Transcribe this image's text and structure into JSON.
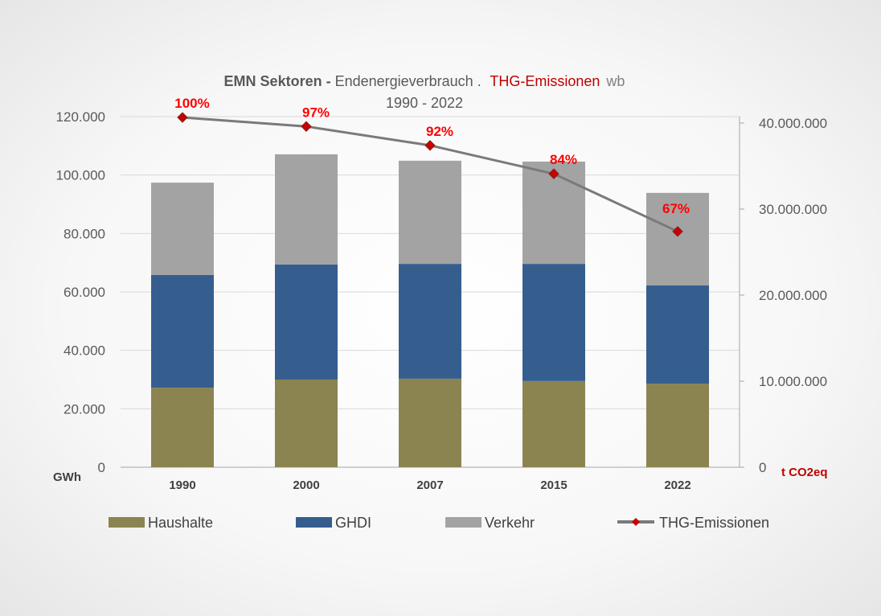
{
  "chart_data": {
    "type": "bar",
    "title": {
      "part1": "EMN Sektoren",
      "sep": " - ",
      "part2": "Endenergieverbrauch",
      "dot": " . ",
      "part3": "THG-Emissionen",
      "part4": "wb"
    },
    "subtitle": "1990 - 2022",
    "ylabel": "GWh",
    "y2label": "t CO2eq",
    "ylim": [
      0,
      120000
    ],
    "y2lim": [
      0,
      40000000
    ],
    "yticks": [
      "0",
      "20.000",
      "40.000",
      "60.000",
      "80.000",
      "100.000",
      "120.000"
    ],
    "y2ticks": [
      "0",
      "10.000.000",
      "20.000.000",
      "30.000.000",
      "40.000.000"
    ],
    "categories": [
      "1990",
      "2000",
      "2007",
      "2015",
      "2022"
    ],
    "series": [
      {
        "name": "Haushalte",
        "type": "stacked-bar",
        "color": "#8b8450",
        "values": [
          27200,
          30000,
          30300,
          29500,
          28600
        ]
      },
      {
        "name": "GHDI",
        "type": "stacked-bar",
        "color": "#355e8f",
        "values": [
          38600,
          39400,
          39300,
          40100,
          33600
        ]
      },
      {
        "name": "Verkehr",
        "type": "stacked-bar",
        "color": "#a3a3a3",
        "values": [
          31600,
          37700,
          35300,
          35000,
          31700
        ]
      },
      {
        "name": "THG-Emissionen",
        "type": "line",
        "axis": "right",
        "color": "#7a7a7a",
        "marker_color": "#cc0000",
        "values": [
          40650000,
          39600000,
          37400000,
          34100000,
          27400000
        ],
        "labels": [
          "100%",
          "97%",
          "92%",
          "84%",
          "67%"
        ]
      }
    ],
    "legend": [
      "Haushalte",
      "GHDI",
      "Verkehr",
      "THG-Emissionen"
    ],
    "legend_position": "bottom",
    "grid": true
  }
}
